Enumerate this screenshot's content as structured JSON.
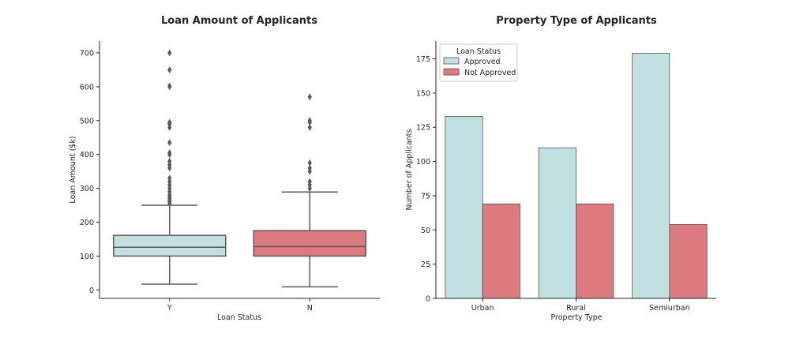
{
  "chart_data": [
    {
      "type": "box",
      "title": "Loan Amount of Applicants",
      "xlabel": "Loan Status",
      "ylabel": "Loan Amount ($k)",
      "ylim": [
        -25,
        735
      ],
      "yticks": [
        0,
        100,
        200,
        300,
        400,
        500,
        600,
        700
      ],
      "categories": [
        "Y",
        "N"
      ],
      "colors": [
        "#c2dfe1",
        "#dc7a80"
      ],
      "boxes": [
        {
          "category": "Y",
          "whisker_low": 17,
          "q1": 100,
          "median": 126,
          "q3": 161,
          "whisker_high": 250,
          "outliers": [
            255,
            260,
            265,
            270,
            275,
            280,
            290,
            300,
            310,
            320,
            330,
            360,
            370,
            380,
            400,
            405,
            435,
            480,
            490,
            495,
            600,
            602,
            650,
            700
          ]
        },
        {
          "category": "N",
          "whisker_low": 9,
          "q1": 100,
          "median": 128,
          "q3": 175,
          "whisker_high": 289,
          "outliers": [
            300,
            310,
            320,
            350,
            360,
            375,
            480,
            495,
            500,
            570
          ]
        }
      ]
    },
    {
      "type": "bar",
      "title": "Property Type of Applicants",
      "xlabel": "Property Type",
      "ylabel": "Number of Applicants",
      "ylim": [
        0,
        188
      ],
      "yticks": [
        0,
        25,
        50,
        75,
        100,
        125,
        150,
        175
      ],
      "categories": [
        "Urban",
        "Rural",
        "Semiurban"
      ],
      "legend": {
        "title": "Loan Status",
        "position": "top-left"
      },
      "series": [
        {
          "name": "Approved",
          "color": "#c2dfe1",
          "values": [
            133,
            110,
            179
          ]
        },
        {
          "name": "Not Approved",
          "color": "#dc7a80",
          "values": [
            69,
            69,
            54
          ]
        }
      ]
    }
  ]
}
